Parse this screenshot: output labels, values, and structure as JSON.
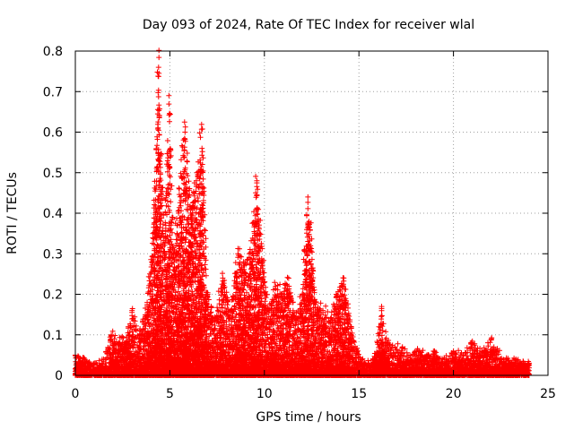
{
  "chart_data": {
    "type": "scatter",
    "title": "Day 093 of 2024, Rate Of TEC Index for receiver wlal",
    "xlabel": "GPS time / hours",
    "ylabel": "ROTI / TECUs",
    "xlim": [
      0,
      25
    ],
    "ylim": [
      0,
      0.8
    ],
    "xticks": [
      "0",
      "5",
      "10",
      "15",
      "20",
      "25"
    ],
    "yticks": [
      "0",
      "0.1",
      "0.2",
      "0.3",
      "0.4",
      "0.5",
      "0.6",
      "0.7",
      "0.8"
    ],
    "grid": true,
    "legend": "none",
    "marker": "+",
    "color": "#ff0000",
    "envelope": {
      "x": [
        0.0,
        0.5,
        1.0,
        1.5,
        1.9,
        2.3,
        2.8,
        3.0,
        3.4,
        3.8,
        4.1,
        4.4,
        4.7,
        4.95,
        5.2,
        5.5,
        5.8,
        6.1,
        6.4,
        6.7,
        7.0,
        7.4,
        7.8,
        8.2,
        8.6,
        8.9,
        9.2,
        9.6,
        9.9,
        10.2,
        10.6,
        10.9,
        11.3,
        11.7,
        12.0,
        12.3,
        12.7,
        13.1,
        13.5,
        13.8,
        14.2,
        14.6,
        14.9,
        15.3,
        15.8,
        16.2,
        16.5,
        16.9,
        17.3,
        17.7,
        18.2,
        18.6,
        19.0,
        19.5,
        20.0,
        20.5,
        21.0,
        21.5,
        22.0,
        22.3,
        22.8,
        23.3,
        24.0
      ],
      "y": [
        0.05,
        0.04,
        0.03,
        0.04,
        0.1,
        0.08,
        0.12,
        0.16,
        0.1,
        0.18,
        0.35,
        0.76,
        0.3,
        0.69,
        0.3,
        0.46,
        0.6,
        0.4,
        0.48,
        0.56,
        0.2,
        0.14,
        0.24,
        0.16,
        0.3,
        0.28,
        0.3,
        0.48,
        0.28,
        0.16,
        0.22,
        0.2,
        0.22,
        0.14,
        0.2,
        0.44,
        0.18,
        0.16,
        0.14,
        0.2,
        0.24,
        0.12,
        0.06,
        0.03,
        0.04,
        0.17,
        0.08,
        0.07,
        0.07,
        0.05,
        0.06,
        0.05,
        0.06,
        0.04,
        0.06,
        0.05,
        0.08,
        0.06,
        0.09,
        0.06,
        0.04,
        0.04,
        0.03
      ]
    }
  }
}
